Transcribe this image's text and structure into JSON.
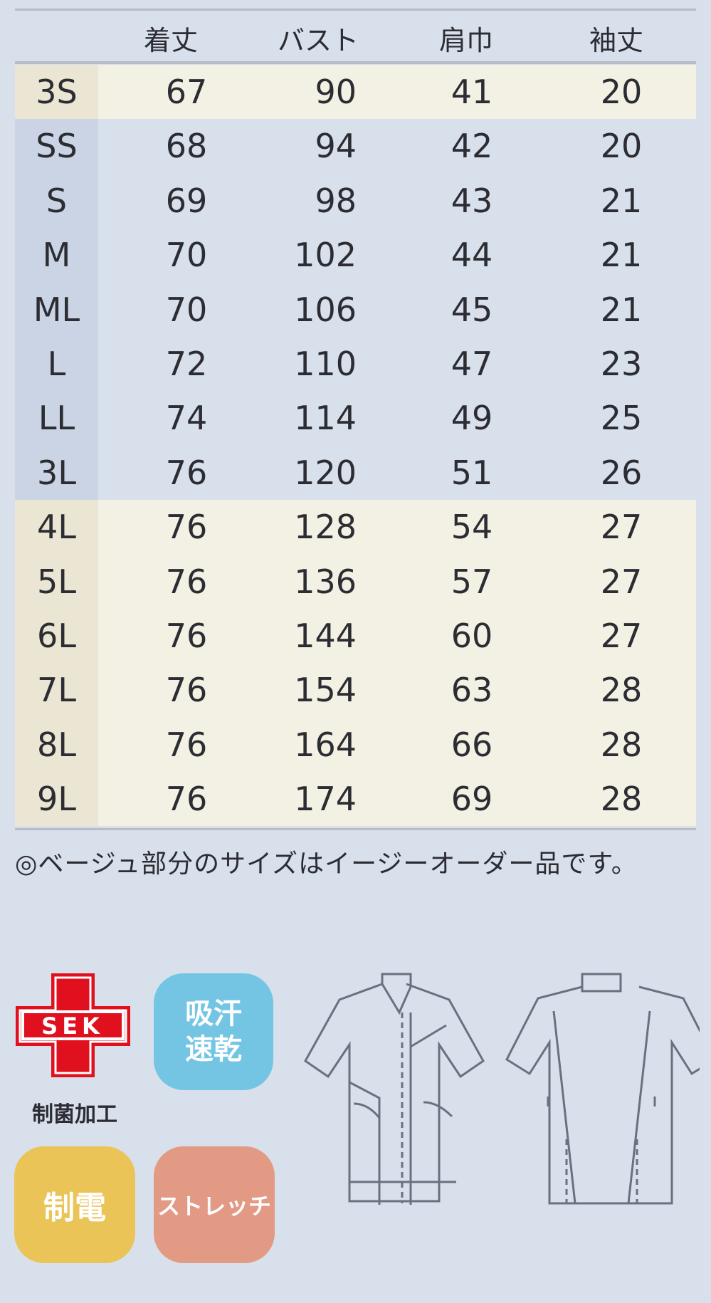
{
  "table": {
    "headers": [
      "着丈",
      "バスト",
      "肩巾",
      "袖丈"
    ],
    "rows": [
      {
        "size": "3S",
        "values": [
          "67",
          "90",
          "41",
          "20"
        ],
        "beige": true
      },
      {
        "size": "SS",
        "values": [
          "68",
          "94",
          "42",
          "20"
        ],
        "beige": false
      },
      {
        "size": "S",
        "values": [
          "69",
          "98",
          "43",
          "21"
        ],
        "beige": false
      },
      {
        "size": "M",
        "values": [
          "70",
          "102",
          "44",
          "21"
        ],
        "beige": false
      },
      {
        "size": "ML",
        "values": [
          "70",
          "106",
          "45",
          "21"
        ],
        "beige": false
      },
      {
        "size": "L",
        "values": [
          "72",
          "110",
          "47",
          "23"
        ],
        "beige": false
      },
      {
        "size": "LL",
        "values": [
          "74",
          "114",
          "49",
          "25"
        ],
        "beige": false
      },
      {
        "size": "3L",
        "values": [
          "76",
          "120",
          "51",
          "26"
        ],
        "beige": false
      },
      {
        "size": "4L",
        "values": [
          "76",
          "128",
          "54",
          "27"
        ],
        "beige": true
      },
      {
        "size": "5L",
        "values": [
          "76",
          "136",
          "57",
          "27"
        ],
        "beige": true
      },
      {
        "size": "6L",
        "values": [
          "76",
          "144",
          "60",
          "27"
        ],
        "beige": true
      },
      {
        "size": "7L",
        "values": [
          "76",
          "154",
          "63",
          "28"
        ],
        "beige": true
      },
      {
        "size": "8L",
        "values": [
          "76",
          "164",
          "66",
          "28"
        ],
        "beige": true
      },
      {
        "size": "9L",
        "values": [
          "76",
          "174",
          "69",
          "28"
        ],
        "beige": true
      }
    ]
  },
  "note": "◎ベージュ部分のサイズはイージーオーダー品です。",
  "badges": {
    "sek_logo": "SEK",
    "sek_label": "制菌加工",
    "quick_dry": "吸汗速乾",
    "antistatic": "制電",
    "stretch": "ストレッチ"
  },
  "colors": {
    "background": "#d8e0ec",
    "beige": "#f3f1e3",
    "sek_red": "#e0101e",
    "quick_dry": "#74c5e4",
    "antistatic": "#ebc458",
    "stretch": "#e39a85"
  }
}
